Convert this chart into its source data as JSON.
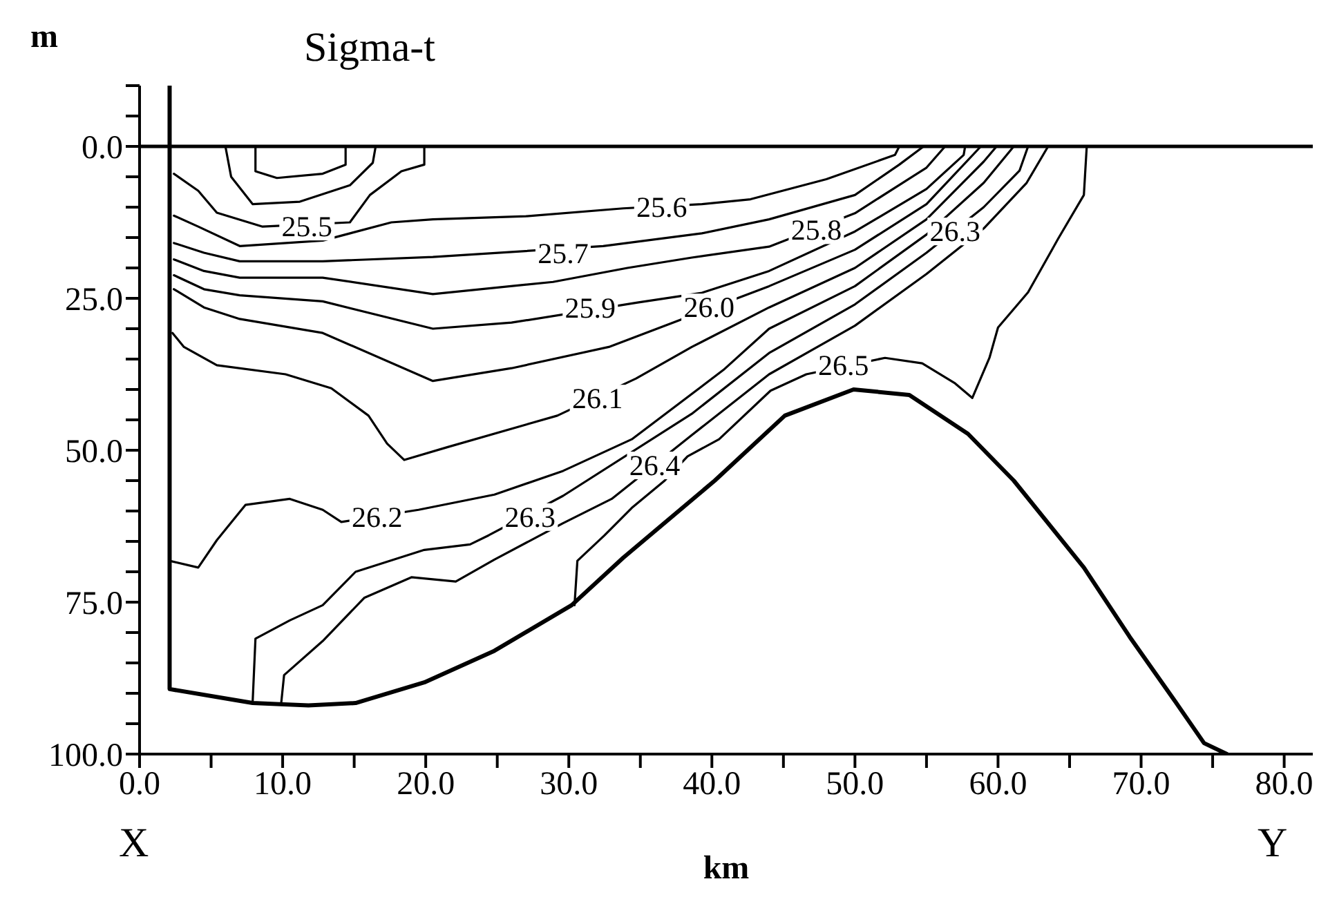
{
  "chart_data": {
    "type": "line",
    "title": "Sigma-t",
    "xlabel": "km",
    "ylabel": "m",
    "marker": "none",
    "line_style": "solid",
    "grid": false,
    "legend": false,
    "xlim": [
      0,
      82
    ],
    "ylim": [
      100,
      -10
    ],
    "xticks": [
      {
        "value": 0,
        "label": "0.0"
      },
      {
        "value": 5,
        "label": null
      },
      {
        "value": 10,
        "label": "10.0"
      },
      {
        "value": 15,
        "label": null
      },
      {
        "value": 20,
        "label": "20.0"
      },
      {
        "value": 25,
        "label": null
      },
      {
        "value": 30,
        "label": "30.0"
      },
      {
        "value": 35,
        "label": null
      },
      {
        "value": 40,
        "label": "40.0"
      },
      {
        "value": 45,
        "label": null
      },
      {
        "value": 50,
        "label": "50.0"
      },
      {
        "value": 55,
        "label": null
      },
      {
        "value": 60,
        "label": "60.0"
      },
      {
        "value": 65,
        "label": null
      },
      {
        "value": 70,
        "label": "70.0"
      },
      {
        "value": 75,
        "label": null
      },
      {
        "value": 80,
        "label": "80.0"
      }
    ],
    "yticks": [
      {
        "value": -10,
        "label": null
      },
      {
        "value": -5,
        "label": null
      },
      {
        "value": 0,
        "label": "0.0"
      },
      {
        "value": 5,
        "label": null
      },
      {
        "value": 10,
        "label": null
      },
      {
        "value": 15,
        "label": null
      },
      {
        "value": 20,
        "label": null
      },
      {
        "value": 25,
        "label": "25.0"
      },
      {
        "value": 30,
        "label": null
      },
      {
        "value": 35,
        "label": null
      },
      {
        "value": 40,
        "label": null
      },
      {
        "value": 45,
        "label": null
      },
      {
        "value": 50,
        "label": "50.0"
      },
      {
        "value": 55,
        "label": null
      },
      {
        "value": 60,
        "label": null
      },
      {
        "value": 65,
        "label": null
      },
      {
        "value": 70,
        "label": null
      },
      {
        "value": 75,
        "label": "75.0"
      },
      {
        "value": 80,
        "label": null
      },
      {
        "value": 85,
        "label": null
      },
      {
        "value": 90,
        "label": null
      },
      {
        "value": 95,
        "label": null
      },
      {
        "value": 100,
        "label": "100.0"
      }
    ],
    "ref_lines": [
      {
        "axis": "y",
        "value": 0,
        "color": "#000000"
      }
    ],
    "series": [
      {
        "color": "#000000",
        "x": [
          2.1,
          2.1,
          7.9,
          11.8,
          15.1,
          19.9,
          24.8,
          30.2,
          33.8,
          40.2,
          45.1,
          49.9,
          53.8,
          57.9,
          61.1,
          66,
          69.2,
          72.4,
          74.4,
          76
        ],
        "values": [
          -10,
          89.3,
          91.6,
          92,
          91.6,
          88.2,
          83,
          75.5,
          67.7,
          55,
          44.3,
          40,
          40.9,
          47.3,
          55,
          69.3,
          80.7,
          91.4,
          98.2,
          100
        ]
      },
      {
        "color": "#000000",
        "x": [
          8.1,
          8.1,
          9.6,
          12.8,
          14.4,
          14.4
        ],
        "values": [
          0,
          4.1,
          5.2,
          4.5,
          3,
          0
        ]
      },
      {
        "color": "#000000",
        "x": [
          6,
          6.4,
          7.9,
          11.2,
          14.7,
          16.3,
          16.5
        ],
        "values": [
          0,
          5,
          9.5,
          9.1,
          6.4,
          2.7,
          0
        ]
      },
      {
        "color": "#000000",
        "x": [
          2.4,
          4.1,
          5.4,
          8.6,
          14.7,
          16.1,
          18.3,
          19.9,
          19.9
        ],
        "values": [
          4.5,
          7.3,
          10.9,
          13.2,
          12.5,
          8,
          4.1,
          3,
          0
        ]
      },
      {
        "color": "#000000",
        "x": [
          2.4,
          4.1,
          7,
          12.8,
          17.6,
          20.5,
          27,
          33.8,
          39.3,
          42.7,
          48,
          52.8,
          53.1
        ],
        "values": [
          11.4,
          13.2,
          16.4,
          15.5,
          12.5,
          12,
          11.5,
          10.2,
          9.5,
          8.7,
          5.4,
          1.4,
          0
        ]
      },
      {
        "color": "#000000",
        "x": [
          2.4,
          4.5,
          7,
          12.8,
          20.5,
          32.4,
          39.3,
          44,
          50,
          53.1,
          54.8
        ],
        "values": [
          15.9,
          17.5,
          18.9,
          18.9,
          18.2,
          16.4,
          14.3,
          12,
          8,
          3,
          0
        ]
      },
      {
        "color": "#000000",
        "x": [
          2.4,
          4.5,
          7,
          12.8,
          20.5,
          28.9,
          34.1,
          38.6,
          44,
          50,
          55,
          56.3
        ],
        "values": [
          18.6,
          20.5,
          21.6,
          21.6,
          24.3,
          22.3,
          20,
          18.3,
          16.5,
          11,
          3.5,
          0
        ]
      },
      {
        "color": "#000000",
        "x": [
          2.4,
          4.5,
          7,
          12.8,
          20.5,
          26,
          34.8,
          39.3,
          44,
          50,
          55,
          57.6,
          57.7
        ],
        "values": [
          21.2,
          23.5,
          24.5,
          25.5,
          30,
          29,
          25.7,
          24.1,
          20.5,
          14,
          7,
          1.4,
          0
        ]
      },
      {
        "color": "#000000",
        "x": [
          2.4,
          4.5,
          7,
          12.8,
          20.5,
          26,
          32.8,
          44,
          50,
          55,
          58.8
        ],
        "values": [
          23.5,
          26.5,
          28.4,
          30.7,
          38.6,
          36.5,
          33,
          23,
          17,
          9.5,
          0
        ]
      },
      {
        "color": "#000000",
        "x": [
          2.3,
          3.1,
          5.4,
          10.2,
          13.4,
          16,
          17.3,
          18.5,
          21.5,
          29.2,
          34.7,
          38.6,
          44,
          50,
          55,
          59,
          59.9
        ],
        "values": [
          30.7,
          33,
          36,
          37.5,
          39.8,
          44.3,
          48.9,
          51.6,
          49.5,
          44.3,
          38.2,
          33,
          26.5,
          20,
          12,
          2.5,
          0
        ]
      },
      {
        "color": "#000000",
        "x": [
          2.1,
          4.1,
          5.4,
          7.4,
          10.5,
          12.8,
          14.1,
          19.5,
          24.8,
          29.6,
          34.4,
          40.8,
          44,
          50,
          55,
          59,
          61.1
        ],
        "values": [
          68.2,
          69.3,
          64.8,
          59,
          58,
          59.8,
          61.8,
          59.8,
          57.3,
          53.4,
          48.2,
          36.8,
          30,
          23,
          14.5,
          6,
          0
        ]
      },
      {
        "color": "#000000",
        "x": [
          7.9,
          8.1,
          10.5,
          12.8,
          15.1,
          19.9,
          23.1,
          24.4,
          29.6,
          38.6,
          44,
          50,
          55,
          59,
          61.5,
          62.1
        ],
        "values": [
          91.6,
          81,
          78,
          75.5,
          70,
          66.4,
          65.5,
          64,
          57.5,
          44,
          34,
          26,
          17.5,
          10,
          4,
          0
        ]
      },
      {
        "color": "#000000",
        "x": [
          9.9,
          10.1,
          12.8,
          15.7,
          19,
          22.1,
          24.8,
          29.6,
          33,
          38.6,
          44,
          50,
          55,
          59,
          62,
          63.5
        ],
        "values": [
          91.6,
          87,
          81.4,
          74.3,
          70.9,
          71.6,
          68,
          62,
          58,
          47.5,
          37.5,
          29.5,
          21,
          13.5,
          6,
          0
        ]
      },
      {
        "color": "#000000",
        "x": [
          66.2,
          66,
          64.2,
          62.1,
          60,
          59.4,
          58.2,
          57,
          54.7,
          52.1,
          46.6,
          44.1,
          40.5,
          38.3,
          36.7,
          34.4,
          32.5,
          30.6,
          30.4
        ],
        "values": [
          0,
          8,
          15.2,
          24,
          29.8,
          34.8,
          41.4,
          39,
          35.7,
          34.8,
          37.5,
          40.2,
          48.2,
          51,
          55,
          59.5,
          64,
          68.2,
          75.5
        ]
      }
    ],
    "annotations": [
      {
        "text": "25.5",
        "x": 11.7,
        "y": 13.2
      },
      {
        "text": "25.6",
        "x": 36.5,
        "y": 10
      },
      {
        "text": "25.7",
        "x": 29.6,
        "y": 17.6
      },
      {
        "text": "25.8",
        "x": 47.3,
        "y": 13.8
      },
      {
        "text": "25.9",
        "x": 31.5,
        "y": 26.6
      },
      {
        "text": "26.0",
        "x": 39.8,
        "y": 26.5
      },
      {
        "text": "26.1",
        "x": 32,
        "y": 41.5
      },
      {
        "text": "26.2",
        "x": 16.6,
        "y": 61
      },
      {
        "text": "26.3",
        "x": 27.3,
        "y": 61
      },
      {
        "text": "26.3",
        "x": 57,
        "y": 14
      },
      {
        "text": "26.4",
        "x": 36,
        "y": 52.5
      },
      {
        "text": "26.5",
        "x": 49.2,
        "y": 36
      },
      "X",
      "Y"
    ]
  }
}
